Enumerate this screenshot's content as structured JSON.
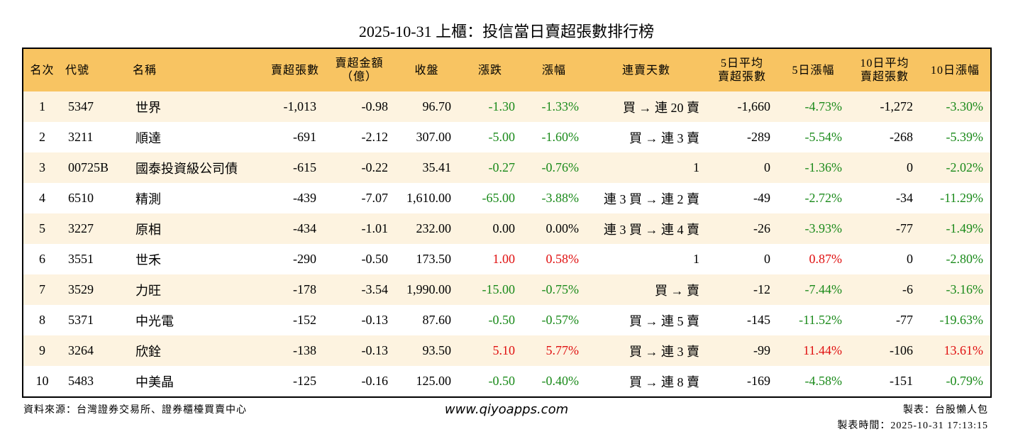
{
  "title": "2025-10-31 上櫃：投信當日賣超張數排行榜",
  "table": {
    "header": [
      [
        "名次"
      ],
      [
        "代號"
      ],
      [
        "名稱"
      ],
      [
        "賣超張數"
      ],
      [
        "賣超金額",
        "（億）"
      ],
      [
        "收盤"
      ],
      [
        "漲跌"
      ],
      [
        "漲幅"
      ],
      [
        "連賣天數"
      ],
      [
        "5日平均",
        "賣超張數"
      ],
      [
        "5日漲幅"
      ],
      [
        "10日平均",
        "賣超張數"
      ],
      [
        "10日漲幅"
      ]
    ],
    "rows": [
      [
        "1",
        "5347",
        "世界",
        "-1,013",
        "-0.98",
        "96.70",
        "-1.30",
        "-1.33%",
        "買 → 連 20 賣",
        "-1,660",
        "-4.73%",
        "-1,272",
        "-3.30%"
      ],
      [
        "2",
        "3211",
        "順達",
        "-691",
        "-2.12",
        "307.00",
        "-5.00",
        "-1.60%",
        "買 → 連 3 賣",
        "-289",
        "-5.54%",
        "-268",
        "-5.39%"
      ],
      [
        "3",
        "00725B",
        "國泰投資級公司債",
        "-615",
        "-0.22",
        "35.41",
        "-0.27",
        "-0.76%",
        "1",
        "0",
        "-1.36%",
        "0",
        "-2.02%"
      ],
      [
        "4",
        "6510",
        "精測",
        "-439",
        "-7.07",
        "1,610.00",
        "-65.00",
        "-3.88%",
        "連 3 買 → 連 2 賣",
        "-49",
        "-2.72%",
        "-34",
        "-11.29%"
      ],
      [
        "5",
        "3227",
        "原相",
        "-434",
        "-1.01",
        "232.00",
        "0.00",
        "0.00%",
        "連 3 買 → 連 4 賣",
        "-26",
        "-3.93%",
        "-77",
        "-1.49%"
      ],
      [
        "6",
        "3551",
        "世禾",
        "-290",
        "-0.50",
        "173.50",
        "1.00",
        "0.58%",
        "1",
        "0",
        "0.87%",
        "0",
        "-2.80%"
      ],
      [
        "7",
        "3529",
        "力旺",
        "-178",
        "-3.54",
        "1,990.00",
        "-15.00",
        "-0.75%",
        "買 → 賣",
        "-12",
        "-7.44%",
        "-6",
        "-3.16%"
      ],
      [
        "8",
        "5371",
        "中光電",
        "-152",
        "-0.13",
        "87.60",
        "-0.50",
        "-0.57%",
        "買 → 連 5 賣",
        "-145",
        "-11.52%",
        "-77",
        "-19.63%"
      ],
      [
        "9",
        "3264",
        "欣銓",
        "-138",
        "-0.13",
        "93.50",
        "5.10",
        "5.77%",
        "買 → 連 3 賣",
        "-99",
        "11.44%",
        "-106",
        "13.61%"
      ],
      [
        "10",
        "5483",
        "中美晶",
        "-125",
        "-0.16",
        "125.00",
        "-0.50",
        "-0.40%",
        "買 → 連 8 賣",
        "-169",
        "-4.58%",
        "-151",
        "-0.79%"
      ]
    ]
  },
  "footer": {
    "source": "資料來源：台灣證券交易所、證券櫃檯買賣中心",
    "website": "www.qiyoapps.com",
    "author": "製表：台股懶人包",
    "time": "製表時間：2025-10-31 17:13:15"
  }
}
